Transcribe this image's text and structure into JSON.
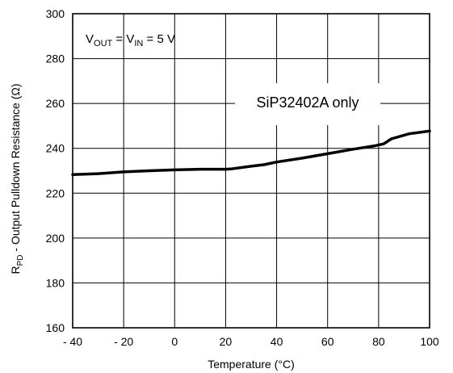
{
  "chart_data": {
    "type": "line",
    "xlabel": "Temperature (°C)",
    "ylabel_parts": {
      "main": "R",
      "sub": "PD",
      "rest": " - Output Pulldown Resistance (Ω)"
    },
    "xlim": [
      -40,
      100
    ],
    "ylim": [
      160,
      300
    ],
    "x_ticks": [
      -40,
      -20,
      0,
      20,
      40,
      60,
      80,
      100
    ],
    "x_tick_labels": [
      "- 40",
      "- 20",
      "0",
      "20",
      "40",
      "60",
      "80",
      "100"
    ],
    "y_ticks": [
      160,
      180,
      200,
      220,
      240,
      260,
      280,
      300
    ],
    "y_tick_labels": [
      "160",
      "180",
      "200",
      "220",
      "240",
      "260",
      "280",
      "300"
    ],
    "grid": true,
    "series": [
      {
        "color": "#000000",
        "x": [
          -40,
          -30,
          -20,
          -10,
          0,
          10,
          20,
          22,
          30,
          35,
          40,
          50,
          60,
          70,
          78,
          82,
          85,
          92,
          100
        ],
        "y": [
          228.3,
          228.7,
          229.5,
          230.0,
          230.4,
          230.7,
          230.7,
          230.8,
          232.0,
          232.7,
          233.9,
          235.6,
          237.6,
          239.6,
          241.0,
          242.0,
          244.2,
          246.5,
          247.7
        ]
      }
    ],
    "annotations": {
      "condition": {
        "parts": [
          {
            "t": "V",
            "sub": false
          },
          {
            "t": "OUT",
            "sub": true
          },
          {
            "t": " = V",
            "sub": false
          },
          {
            "t": "IN",
            "sub": true
          },
          {
            "t": " = 5 V",
            "sub": false
          }
        ]
      },
      "device_note": "SiP32402A only"
    }
  }
}
